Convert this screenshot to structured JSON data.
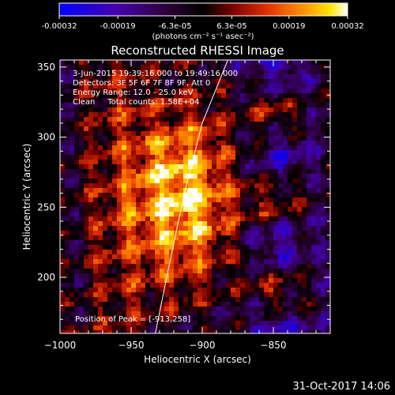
{
  "chart_data": {
    "type": "heatmap",
    "title": "Reconstructed RHESSI Image",
    "xlabel": "Heliocentric X (arcsec)",
    "ylabel": "Heliocentric Y (arcsec)",
    "xlim": [
      -1000,
      -810
    ],
    "ylim": [
      160,
      355
    ],
    "x_ticks": [
      -1000,
      -950,
      -900,
      -850
    ],
    "x_tick_labels": [
      "−1000",
      "−950",
      "−900",
      "−850"
    ],
    "y_ticks": [
      200,
      250,
      300,
      350
    ],
    "y_tick_labels": [
      "200",
      "250",
      "300",
      "350"
    ],
    "colorbar": {
      "range": [
        -0.00032,
        0.00032
      ],
      "ticks": [
        -0.00032,
        -0.00019,
        -6.3e-05,
        6.3e-05,
        0.00019,
        0.00032
      ],
      "tick_labels": [
        "-0.00032",
        "-0.00019",
        "-6.3e-05",
        "6.3e-05",
        "0.00019",
        "0.00032"
      ],
      "unit_label": "(photons cm⁻² s⁻¹ asec⁻²)",
      "colors": [
        "#0000ff",
        "#4400aa",
        "#2a0033",
        "#000000",
        "#7a0000",
        "#e03000",
        "#ff8c00",
        "#ffe600",
        "#ffffff"
      ]
    },
    "annotations": [
      "3-Jun-2015 19:39:16.000 to 19:49:16.000",
      "Detectors: 3F 5F 6F 7F 8F 9F, Att 0",
      "Energy Range: 12.0 - 25.0 keV",
      "Clean     Total counts: 1.58E+04"
    ],
    "peak_label": "Position of Peak = [-913,258]",
    "peak": [
      -913,
      258
    ],
    "limb_points": [
      [
        -933,
        160
      ],
      [
        -924,
        205
      ],
      [
        -913,
        258
      ],
      [
        -900,
        310
      ],
      [
        -882,
        355
      ]
    ],
    "limb_color": "#ffffff",
    "grid": false
  },
  "footer": {
    "date": "31-Oct-2017 14:06"
  }
}
